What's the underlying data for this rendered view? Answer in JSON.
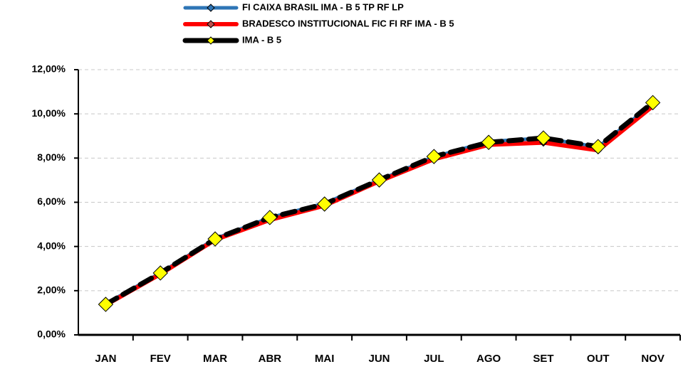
{
  "chart_data": {
    "type": "line",
    "categories": [
      "JAN",
      "FEV",
      "MAR",
      "ABR",
      "MAI",
      "JUN",
      "JUL",
      "AGO",
      "SET",
      "OUT",
      "NOV"
    ],
    "series": [
      {
        "name": "FI CAIXA BRASIL IMA - B 5 TP RF LP",
        "color": "#2e75b6",
        "marker_color": "#2e75b6",
        "values": [
          1.4,
          2.8,
          4.35,
          5.3,
          5.95,
          7.0,
          8.05,
          8.75,
          8.9,
          8.5,
          10.45
        ]
      },
      {
        "name": "BRADESCO INSTITUCIONAL FIC FI RF IMA - B 5",
        "color": "#ff0000",
        "marker_color": "#c0504d",
        "values": [
          1.35,
          2.75,
          4.3,
          5.2,
          5.85,
          6.95,
          7.95,
          8.6,
          8.7,
          8.35,
          10.35
        ]
      },
      {
        "name": "IMA - B 5",
        "color": "#000000",
        "marker_color": "#ffff00",
        "line_style": "dashed",
        "values": [
          1.38,
          2.8,
          4.34,
          5.31,
          5.92,
          7.01,
          8.07,
          8.71,
          8.91,
          8.52,
          10.51
        ]
      }
    ],
    "ylim": [
      0,
      12
    ],
    "yticks": [
      {
        "value": 0,
        "label": "0,00%"
      },
      {
        "value": 2,
        "label": "2,00%"
      },
      {
        "value": 4,
        "label": "4,00%"
      },
      {
        "value": 6,
        "label": "6,00%"
      },
      {
        "value": 8,
        "label": "8,00%"
      },
      {
        "value": 10,
        "label": "10,00%"
      },
      {
        "value": 12,
        "label": "12,00%"
      }
    ],
    "grid": true,
    "legend": "top"
  }
}
